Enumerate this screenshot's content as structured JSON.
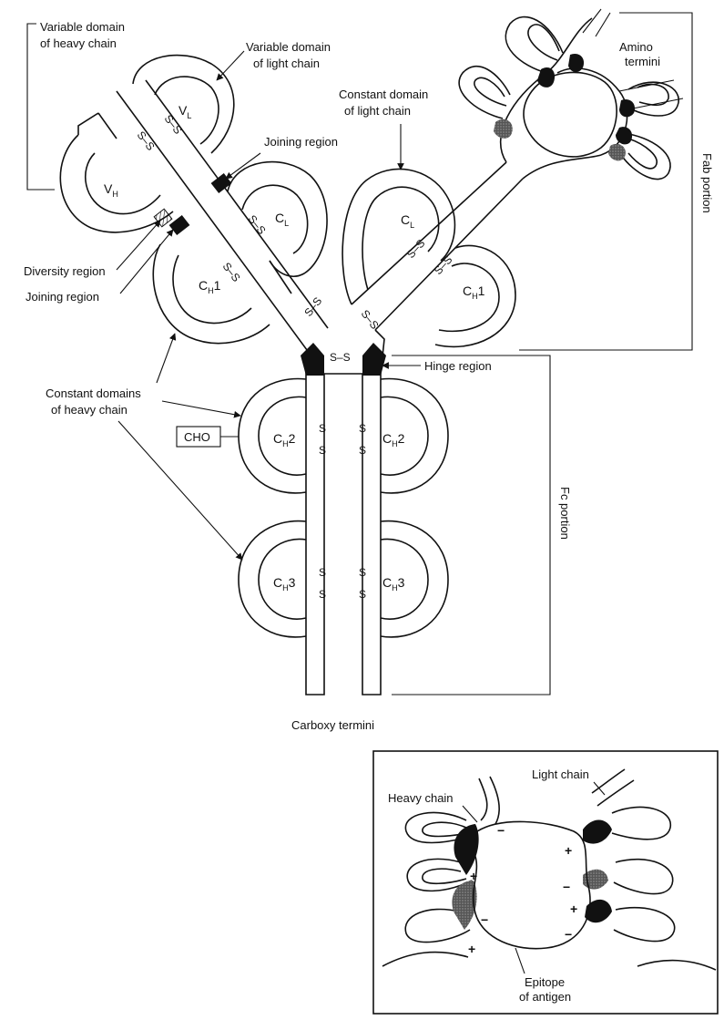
{
  "labels": {
    "var_heavy_1": "Variable domain",
    "var_heavy_2": "of heavy chain",
    "var_light_1": "Variable domain",
    "var_light_2": "of light chain",
    "const_light_1": "Constant domain",
    "const_light_2": "of light chain",
    "amino_1": "Amino",
    "amino_2": "termini",
    "joining_1": "Joining region",
    "diversity": "Diversity region",
    "joining_2": "Joining region",
    "const_heavy_1": "Constant domains",
    "const_heavy_2": "of heavy chain",
    "cho": "CHO",
    "hinge": "Hinge region",
    "fab": "Fab portion",
    "fc": "Fc portion",
    "carboxy": "Carboxy termini",
    "inset_heavy": "Heavy chain",
    "inset_light": "Light chain",
    "epitope_1": "Epitope",
    "epitope_2": "of antigen"
  },
  "domains": {
    "c": "C",
    "v": "V",
    "sub_l": "L",
    "sub_h": "H",
    "n1": "1",
    "n2": "2",
    "n3": "3"
  },
  "bonds": {
    "ss": "S–S",
    "s": "S"
  },
  "charges": {
    "plus": "+",
    "minus": "−"
  }
}
